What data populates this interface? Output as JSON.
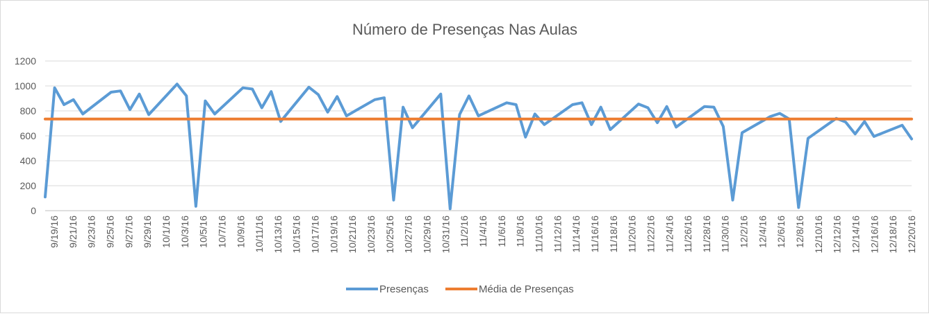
{
  "chart_data": {
    "type": "line",
    "title": "Número de Presenças Nas Aulas",
    "xlabel": "",
    "ylabel": "",
    "ylim": [
      0,
      1200
    ],
    "yticks": [
      0,
      200,
      400,
      600,
      800,
      1000,
      1200
    ],
    "grid": true,
    "legend_position": "bottom",
    "x_tick_labels": [
      "9/19/16",
      "9/21/16",
      "9/23/16",
      "9/25/16",
      "9/27/16",
      "9/29/16",
      "10/1/16",
      "10/3/16",
      "10/5/16",
      "10/7/16",
      "10/9/16",
      "10/11/16",
      "10/13/16",
      "10/15/16",
      "10/17/16",
      "10/19/16",
      "10/21/16",
      "10/23/16",
      "10/25/16",
      "10/27/16",
      "10/29/16",
      "10/31/16",
      "11/2/16",
      "11/4/16",
      "11/6/16",
      "11/8/16",
      "11/10/16",
      "11/12/16",
      "11/14/16",
      "11/16/16",
      "11/18/16",
      "11/20/16",
      "11/22/16",
      "11/24/16",
      "11/26/16",
      "11/28/16",
      "11/30/16",
      "12/2/16",
      "12/4/16",
      "12/6/16",
      "12/8/16",
      "12/10/16",
      "12/12/16",
      "12/14/16",
      "12/16/16",
      "12/18/16",
      "12/20/16"
    ],
    "x_start": "2016-09-19",
    "x_end": "2016-12-20",
    "series": [
      {
        "name": "Presenças",
        "color": "#5b9bd5",
        "points": [
          [
            "2016-09-19",
            110
          ],
          [
            "2016-09-20",
            985
          ],
          [
            "2016-09-21",
            850
          ],
          [
            "2016-09-22",
            890
          ],
          [
            "2016-09-23",
            775
          ],
          [
            "2016-09-26",
            950
          ],
          [
            "2016-09-27",
            960
          ],
          [
            "2016-09-28",
            810
          ],
          [
            "2016-09-29",
            935
          ],
          [
            "2016-09-30",
            770
          ],
          [
            "2016-10-03",
            1015
          ],
          [
            "2016-10-04",
            920
          ],
          [
            "2016-10-05",
            35
          ],
          [
            "2016-10-06",
            880
          ],
          [
            "2016-10-07",
            775
          ],
          [
            "2016-10-10",
            985
          ],
          [
            "2016-10-11",
            975
          ],
          [
            "2016-10-12",
            825
          ],
          [
            "2016-10-13",
            955
          ],
          [
            "2016-10-14",
            715
          ],
          [
            "2016-10-17",
            990
          ],
          [
            "2016-10-18",
            930
          ],
          [
            "2016-10-19",
            790
          ],
          [
            "2016-10-20",
            915
          ],
          [
            "2016-10-21",
            760
          ],
          [
            "2016-10-24",
            890
          ],
          [
            "2016-10-25",
            905
          ],
          [
            "2016-10-26",
            85
          ],
          [
            "2016-10-27",
            830
          ],
          [
            "2016-10-28",
            665
          ],
          [
            "2016-10-31",
            935
          ],
          [
            "2016-11-01",
            15
          ],
          [
            "2016-11-02",
            770
          ],
          [
            "2016-11-03",
            920
          ],
          [
            "2016-11-04",
            760
          ],
          [
            "2016-11-07",
            865
          ],
          [
            "2016-11-08",
            850
          ],
          [
            "2016-11-09",
            590
          ],
          [
            "2016-11-10",
            775
          ],
          [
            "2016-11-11",
            690
          ],
          [
            "2016-11-14",
            850
          ],
          [
            "2016-11-15",
            865
          ],
          [
            "2016-11-16",
            690
          ],
          [
            "2016-11-17",
            830
          ],
          [
            "2016-11-18",
            650
          ],
          [
            "2016-11-21",
            855
          ],
          [
            "2016-11-22",
            825
          ],
          [
            "2016-11-23",
            705
          ],
          [
            "2016-11-24",
            835
          ],
          [
            "2016-11-25",
            670
          ],
          [
            "2016-11-28",
            835
          ],
          [
            "2016-11-29",
            830
          ],
          [
            "2016-11-30",
            675
          ],
          [
            "2016-12-01",
            85
          ],
          [
            "2016-12-02",
            625
          ],
          [
            "2016-12-05",
            755
          ],
          [
            "2016-12-06",
            780
          ],
          [
            "2016-12-07",
            735
          ],
          [
            "2016-12-08",
            25
          ],
          [
            "2016-12-09",
            580
          ],
          [
            "2016-12-12",
            740
          ],
          [
            "2016-12-13",
            710
          ],
          [
            "2016-12-14",
            615
          ],
          [
            "2016-12-15",
            715
          ],
          [
            "2016-12-16",
            595
          ],
          [
            "2016-12-19",
            685
          ],
          [
            "2016-12-20",
            575
          ]
        ]
      },
      {
        "name": "Média de Presenças",
        "color": "#ed7d31",
        "points": [
          [
            "2016-09-19",
            735
          ],
          [
            "2016-12-20",
            735
          ]
        ]
      }
    ]
  }
}
